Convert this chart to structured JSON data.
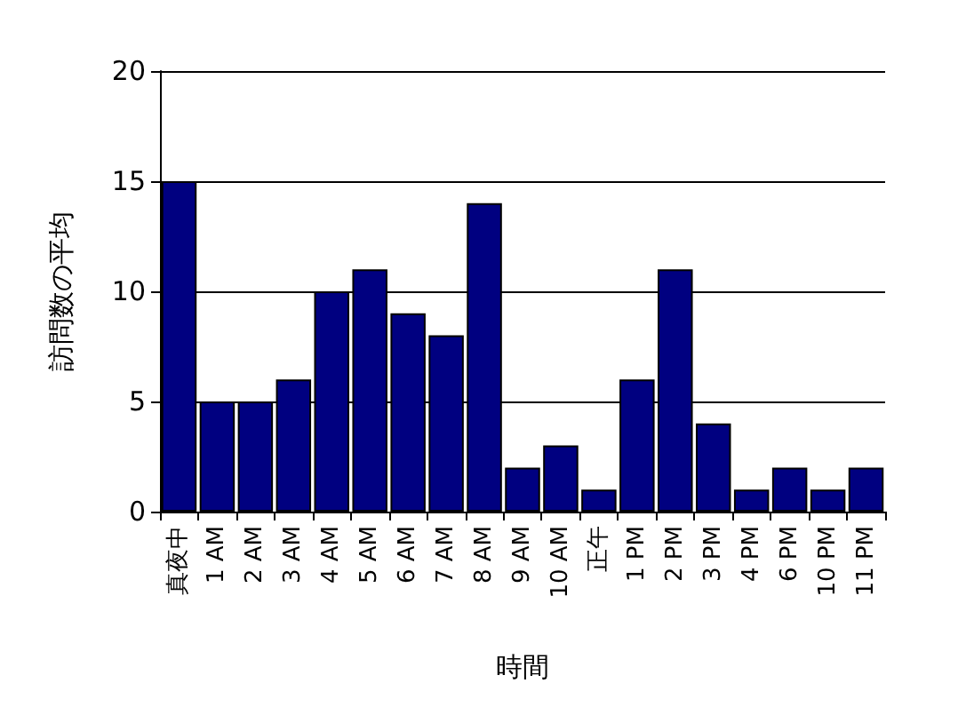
{
  "chart_data": {
    "type": "bar",
    "xlabel": "時間",
    "ylabel": "訪問数の平均",
    "categories": [
      "真夜中",
      "1 AM",
      "2 AM",
      "3 AM",
      "4 AM",
      "5 AM",
      "6 AM",
      "7 AM",
      "8 AM",
      "9 AM",
      "10 AM",
      "正午",
      "1 PM",
      "2 PM",
      "3 PM",
      "4 PM",
      "6 PM",
      "10 PM",
      "11 PM"
    ],
    "values": [
      15,
      5,
      5,
      6,
      10,
      11,
      9,
      8,
      14,
      2,
      3,
      1,
      6,
      11,
      4,
      1,
      2,
      1,
      2
    ],
    "color": "#000080",
    "ylim": [
      0,
      20
    ],
    "yticks": [
      0,
      5,
      10,
      15,
      20
    ],
    "grid": "y"
  }
}
